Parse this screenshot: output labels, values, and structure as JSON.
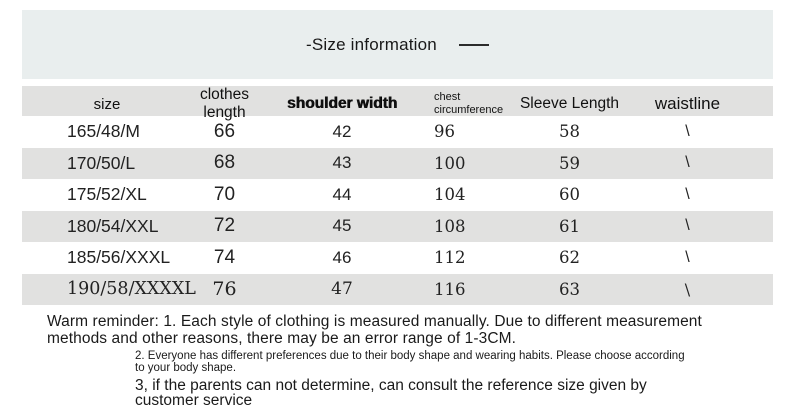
{
  "title": {
    "text": "-Size information"
  },
  "table": {
    "headers": {
      "size": "size",
      "clothes_length": "clothes length",
      "shoulder_width": "shoulder width",
      "chest_circumference": "chest circumference",
      "sleeve_length": "Sleeve Length",
      "waistline": "waistline"
    },
    "rows": [
      {
        "size": "165/48/M",
        "clothes_length": "66",
        "shoulder_width": "42",
        "chest_circumference": "96",
        "sleeve_length": "58",
        "waistline": "\\"
      },
      {
        "size": "170/50/L",
        "clothes_length": "68",
        "shoulder_width": "43",
        "chest_circumference": "100",
        "sleeve_length": "59",
        "waistline": "\\"
      },
      {
        "size": "175/52/XL",
        "clothes_length": "70",
        "shoulder_width": "44",
        "chest_circumference": "104",
        "sleeve_length": "60",
        "waistline": "\\"
      },
      {
        "size": "180/54/XXL",
        "clothes_length": "72",
        "shoulder_width": "45",
        "chest_circumference": "108",
        "sleeve_length": "61",
        "waistline": "\\"
      },
      {
        "size": "185/56/XXXL",
        "clothes_length": "74",
        "shoulder_width": "46",
        "chest_circumference": "112",
        "sleeve_length": "62",
        "waistline": "\\"
      },
      {
        "size": "190/58/XXXXL",
        "clothes_length": "76",
        "shoulder_width": "47",
        "chest_circumference": "116",
        "sleeve_length": "63",
        "waistline": "\\"
      }
    ]
  },
  "reminder": {
    "note1_line1": "Warm reminder: 1. Each style of clothing is measured manually. Due to different measurement",
    "note1_line2": "methods and other reasons, there may be an error range of 1-3CM.",
    "note2_line1": "2. Everyone has different preferences due to their body shape and wearing habits. Please choose according",
    "note2_line2": "to your body shape.",
    "note3_line1": "3, if the parents can not determine, can consult the reference size given by",
    "note3_line2": "customer service"
  }
}
